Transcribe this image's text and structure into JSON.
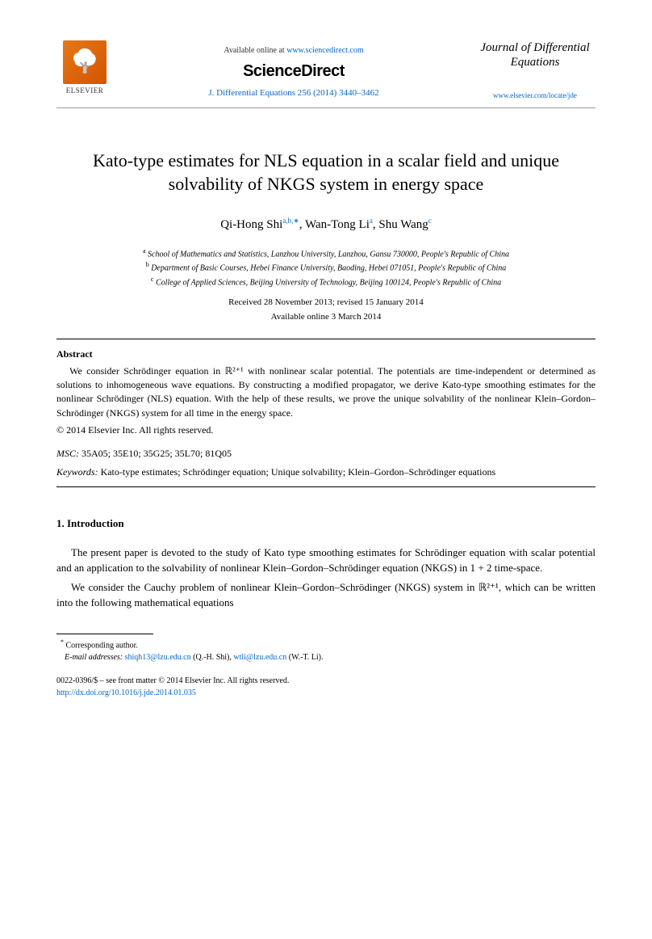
{
  "header": {
    "elsevier": "ELSEVIER",
    "available_prefix": "Available online at ",
    "available_url": "www.sciencedirect.com",
    "sciencedirect": "ScienceDirect",
    "citation": "J. Differential Equations 256 (2014) 3440–3462",
    "journal_title": "Journal of Differential Equations",
    "journal_url": "www.elsevier.com/locate/jde"
  },
  "title": "Kato-type estimates for NLS equation in a scalar field and unique solvability of NKGS system in energy space",
  "authors": [
    {
      "name": "Qi-Hong Shi",
      "sup": "a,b,∗"
    },
    {
      "name": "Wan-Tong Li",
      "sup": "a"
    },
    {
      "name": "Shu Wang",
      "sup": "c"
    }
  ],
  "affiliations": {
    "a": "School of Mathematics and Statistics, Lanzhou University, Lanzhou, Gansu 730000, People's Republic of China",
    "b": "Department of Basic Courses, Hebei Finance University, Baoding, Hebei 071051, People's Republic of China",
    "c": "College of Applied Sciences, Beijing University of Technology, Beijing 100124, People's Republic of China"
  },
  "received": "Received 28 November 2013; revised 15 January 2014",
  "online": "Available online 3 March 2014",
  "abstract_head": "Abstract",
  "abstract_text": "We consider Schrödinger equation in ℝ²⁺¹ with nonlinear scalar potential. The potentials are time-independent or determined as solutions to inhomogeneous wave equations. By constructing a modified propagator, we derive Kato-type smoothing estimates for the nonlinear Schrödinger (NLS) equation. With the help of these results, we prove the unique solvability of the nonlinear Klein–Gordon–Schrödinger (NKGS) system for all time in the energy space.",
  "copyright": "© 2014 Elsevier Inc. All rights reserved.",
  "msc_label": "MSC:",
  "msc": "35A05; 35E10; 35G25; 35L70; 81Q05",
  "kw_label": "Keywords:",
  "keywords": "Kato-type estimates; Schrödinger equation; Unique solvability; Klein–Gordon–Schrödinger equations",
  "intro_head": "1.  Introduction",
  "intro_p1": "The present paper is devoted to the study of Kato type smoothing estimates for Schrödinger equation with scalar potential and an application to the solvability of nonlinear Klein–Gordon–Schrödinger equation (NKGS) in 1 + 2 time-space.",
  "intro_p2": "We consider the Cauchy problem of nonlinear Klein–Gordon–Schrödinger (NKGS) system in ℝ²⁺¹, which can be written into the following mathematical equations",
  "corr_label": "Corresponding author.",
  "email_label": "E-mail addresses:",
  "emails": [
    {
      "addr": "shiqh13@lzu.edu.cn",
      "who": "(Q.-H. Shi)"
    },
    {
      "addr": "wtli@lzu.edu.cn",
      "who": "(W.-T. Li)"
    }
  ],
  "issn": "0022-0396/$ – see front matter © 2014 Elsevier Inc. All rights reserved.",
  "doi": "http://dx.doi.org/10.1016/j.jde.2014.01.035",
  "colors": {
    "link": "#0066cc",
    "text": "#000000",
    "elsevier_orange": "#e67817"
  }
}
